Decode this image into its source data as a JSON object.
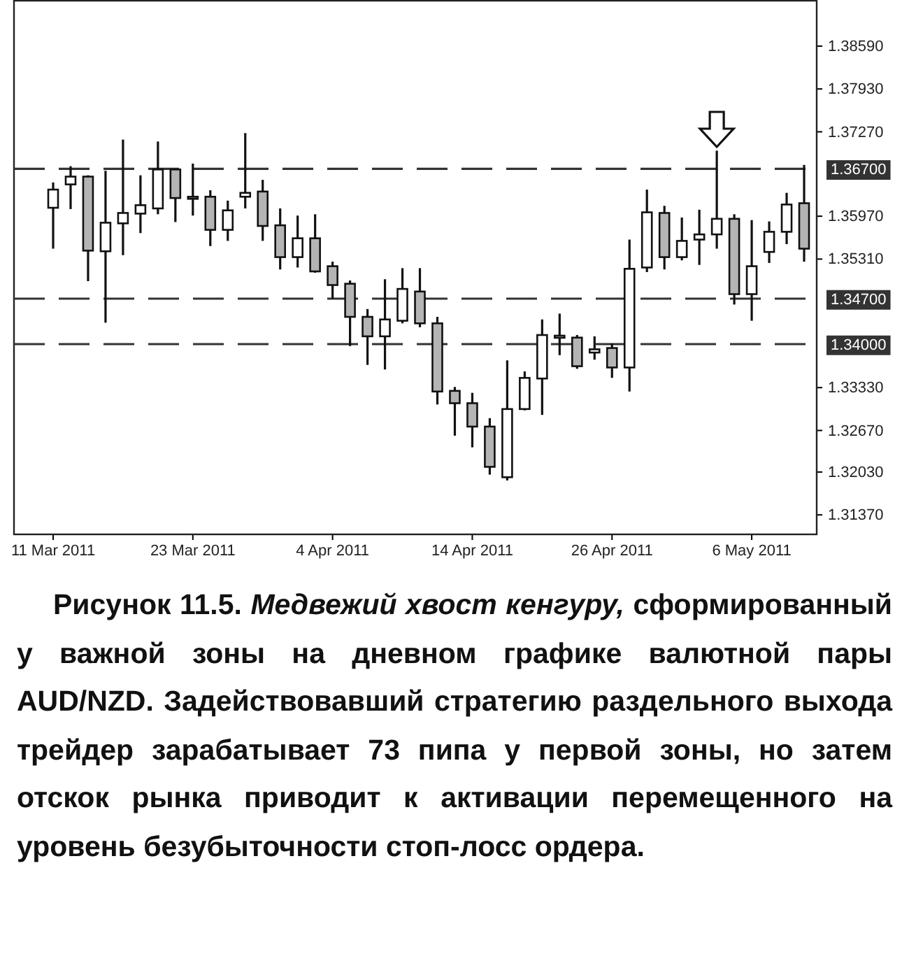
{
  "chart_data": {
    "type": "candlestick",
    "title": "Рисунок 11.5.",
    "subtitle": "Медвежий хвост кенгуру,",
    "annotations": [
      "сформированный у важной зоны на дневном графике валютной пары AUD/NZD. Задействовавший стратегию раздельного выхода трейдер зарабатывает 73 пипа у первой зоны, но затем отскок рынка приводит к активации перемещенного на уровень безубыточности стоп-лосс ордера."
    ],
    "categories": [
      "11 Mar 2011",
      null,
      null,
      null,
      null,
      null,
      null,
      null,
      "23 Mar 2011",
      null,
      null,
      null,
      null,
      null,
      null,
      null,
      "4 Apr 2011",
      null,
      null,
      null,
      null,
      null,
      null,
      null,
      "14 Apr 2011",
      null,
      null,
      null,
      null,
      null,
      null,
      null,
      "26 Apr 2011",
      null,
      null,
      null,
      null,
      null,
      null,
      null,
      "6 May 2011",
      null,
      null,
      null
    ],
    "ohlc": [
      [
        1.361,
        1.3649,
        1.3547,
        1.3638
      ],
      [
        1.3646,
        1.3674,
        1.3608,
        1.3658
      ],
      [
        1.3658,
        1.366,
        1.3497,
        1.3544
      ],
      [
        1.3543,
        1.3667,
        1.3433,
        1.3587
      ],
      [
        1.3586,
        1.3715,
        1.3537,
        1.3602
      ],
      [
        1.3601,
        1.366,
        1.3571,
        1.3614
      ],
      [
        1.3609,
        1.3712,
        1.36,
        1.3669
      ],
      [
        1.3669,
        1.367,
        1.3588,
        1.3625
      ],
      [
        1.3627,
        1.3678,
        1.3598,
        1.3625
      ],
      [
        1.3627,
        1.3637,
        1.3551,
        1.3576
      ],
      [
        1.3576,
        1.3621,
        1.3559,
        1.3606
      ],
      [
        1.3627,
        1.3725,
        1.3609,
        1.3633
      ],
      [
        1.3635,
        1.3653,
        1.3559,
        1.3582
      ],
      [
        1.3583,
        1.3609,
        1.3515,
        1.3534
      ],
      [
        1.3534,
        1.3598,
        1.3518,
        1.3563
      ],
      [
        1.3563,
        1.36,
        1.351,
        1.3512
      ],
      [
        1.352,
        1.3527,
        1.347,
        1.3491
      ],
      [
        1.3493,
        1.3498,
        1.3397,
        1.3442
      ],
      [
        1.3442,
        1.3454,
        1.3368,
        1.3412
      ],
      [
        1.3412,
        1.35,
        1.3361,
        1.3438
      ],
      [
        1.3436,
        1.3517,
        1.3432,
        1.3485
      ],
      [
        1.3481,
        1.3517,
        1.3426,
        1.3432
      ],
      [
        1.3432,
        1.3442,
        1.3307,
        1.3327
      ],
      [
        1.3328,
        1.3334,
        1.3259,
        1.3309
      ],
      [
        1.3309,
        1.3325,
        1.3241,
        1.3273
      ],
      [
        1.3273,
        1.3286,
        1.3199,
        1.3211
      ],
      [
        1.3195,
        1.3375,
        1.319,
        1.33
      ],
      [
        1.33,
        1.3358,
        1.3298,
        1.3348
      ],
      [
        1.3347,
        1.3438,
        1.3291,
        1.3414
      ],
      [
        1.341,
        1.3447,
        1.3383,
        1.3413
      ],
      [
        1.341,
        1.3414,
        1.3362,
        1.3366
      ],
      [
        1.3387,
        1.3412,
        1.3376,
        1.3392
      ],
      [
        1.3394,
        1.3401,
        1.3348,
        1.3364
      ],
      [
        1.3364,
        1.3561,
        1.3327,
        1.3516
      ],
      [
        1.3518,
        1.3638,
        1.3511,
        1.3603
      ],
      [
        1.3602,
        1.3613,
        1.3515,
        1.3534
      ],
      [
        1.3534,
        1.3595,
        1.3529,
        1.3559
      ],
      [
        1.3561,
        1.3607,
        1.3522,
        1.3569
      ],
      [
        1.3569,
        1.3698,
        1.3547,
        1.3593
      ],
      [
        1.3593,
        1.36,
        1.3461,
        1.3477
      ],
      [
        1.3477,
        1.3591,
        1.3436,
        1.352
      ],
      [
        1.3542,
        1.3589,
        1.3525,
        1.3573
      ],
      [
        1.3573,
        1.3633,
        1.3554,
        1.3615
      ],
      [
        1.3617,
        1.3676,
        1.3527,
        1.3547
      ]
    ],
    "ylim": [
      1.3107,
      1.393
    ],
    "yticks": [
      {
        "value": 1.3859,
        "label": "1.38590"
      },
      {
        "value": 1.3793,
        "label": "1.37930"
      },
      {
        "value": 1.3727,
        "label": "1.37270"
      },
      {
        "value": 1.3597,
        "label": "1.35970"
      },
      {
        "value": 1.3531,
        "label": "1.35310"
      },
      {
        "value": 1.3333,
        "label": "1.33330"
      },
      {
        "value": 1.3267,
        "label": "1.32670"
      },
      {
        "value": 1.3203,
        "label": "1.32030"
      },
      {
        "value": 1.3137,
        "label": "1.31370"
      }
    ],
    "ref_lines": [
      {
        "axis": "y",
        "value": 1.367,
        "label": "1.36700",
        "color": "#333333",
        "line_style": "dashed"
      },
      {
        "axis": "y",
        "value": 1.347,
        "label": "1.34700",
        "color": "#333333",
        "line_style": "dashed"
      },
      {
        "axis": "y",
        "value": 1.34,
        "label": "1.34000",
        "color": "#333333",
        "line_style": "dashed"
      }
    ]
  }
}
